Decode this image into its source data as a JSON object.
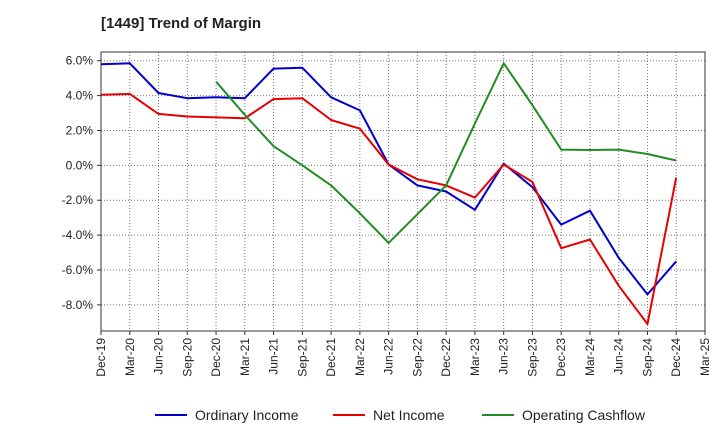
{
  "chart_data": {
    "type": "line",
    "title": "[1449]  Trend of Margin",
    "xlabel": "",
    "ylabel": "",
    "categories": [
      "Dec-19",
      "Mar-20",
      "Jun-20",
      "Sep-20",
      "Dec-20",
      "Mar-21",
      "Jun-21",
      "Sep-21",
      "Dec-21",
      "Mar-22",
      "Jun-22",
      "Sep-22",
      "Dec-22",
      "Mar-23",
      "Jun-23",
      "Sep-23",
      "Dec-23",
      "Mar-24",
      "Jun-24",
      "Sep-24",
      "Dec-24",
      "Mar-25"
    ],
    "ylim": [
      -9.5,
      6.5
    ],
    "yticks": [
      6,
      4,
      2,
      0,
      -2,
      -4,
      -6,
      -8
    ],
    "ytick_labels": [
      "6.0%",
      "4.0%",
      "2.0%",
      "0.0%",
      "-2.0%",
      "-4.0%",
      "-6.0%",
      "-8.0%"
    ],
    "grid": true,
    "legend_position": "bottom",
    "series": [
      {
        "name": "Ordinary Income",
        "color": "#0000cc",
        "values": [
          5.8,
          5.85,
          4.15,
          3.85,
          3.9,
          3.85,
          5.55,
          5.6,
          3.9,
          3.15,
          0.05,
          -1.15,
          -1.5,
          -2.55,
          0.1,
          -1.25,
          -3.4,
          -2.6,
          -5.3,
          -7.4,
          -5.5,
          null
        ]
      },
      {
        "name": "Net Income",
        "color": "#e60000",
        "values": [
          4.05,
          4.1,
          2.95,
          2.8,
          2.75,
          2.7,
          3.8,
          3.85,
          2.6,
          2.1,
          0.05,
          -0.8,
          -1.15,
          -1.85,
          0.05,
          -0.95,
          -4.75,
          -4.25,
          -6.9,
          -9.1,
          -0.7,
          null
        ]
      },
      {
        "name": "Operating Cashflow",
        "color": "#228b22",
        "values": [
          null,
          null,
          null,
          null,
          4.8,
          2.9,
          1.1,
          0.0,
          -1.15,
          -2.75,
          -4.45,
          -2.8,
          -1.15,
          2.4,
          5.85,
          3.45,
          0.9,
          0.88,
          0.9,
          0.65,
          0.28,
          null
        ]
      }
    ]
  }
}
